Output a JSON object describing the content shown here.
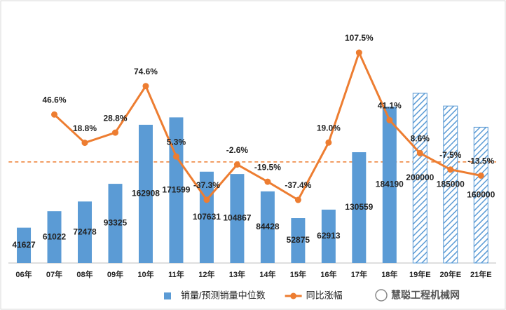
{
  "chart_data": {
    "type": "bar-line",
    "categories": [
      "06年",
      "07年",
      "08年",
      "09年",
      "10年",
      "11年",
      "12年",
      "13年",
      "14年",
      "15年",
      "16年",
      "17年",
      "18年",
      "19年E",
      "20年E",
      "21年E"
    ],
    "series": [
      {
        "name": "销量/预测销量中位数",
        "type": "bar",
        "color": "#5b9bd5",
        "values": [
          41627,
          61022,
          72478,
          93325,
          162908,
          171599,
          107631,
          104867,
          84428,
          52875,
          62913,
          130559,
          184190,
          200000,
          185000,
          160000
        ],
        "hatched": [
          false,
          false,
          false,
          false,
          false,
          false,
          false,
          false,
          false,
          false,
          false,
          false,
          false,
          true,
          true,
          true
        ]
      },
      {
        "name": "同比涨幅",
        "type": "line",
        "axis": "y2",
        "color": "#ed7d31",
        "values": [
          null,
          46.6,
          18.8,
          28.8,
          74.6,
          5.3,
          -37.3,
          -2.6,
          -19.5,
          -37.4,
          19.0,
          107.5,
          41.1,
          8.6,
          -7.5,
          -13.5
        ],
        "value_labels": [
          null,
          "46.6%",
          "18.8%",
          "28.8%",
          "74.6%",
          "5.3%",
          "-37.3%",
          "-2.6%",
          "-19.5%",
          "-37.4%",
          "19.0%",
          "107.5%",
          "41.1%",
          "8.6%",
          "-7.5%",
          "-13.5%"
        ]
      }
    ],
    "ylim": [
      0,
      293400
    ],
    "y2lim": [
      -99.5,
      145.5
    ],
    "y2_zero_line": true,
    "legend": "bottom",
    "watermark": "慧聪工程机械网"
  }
}
